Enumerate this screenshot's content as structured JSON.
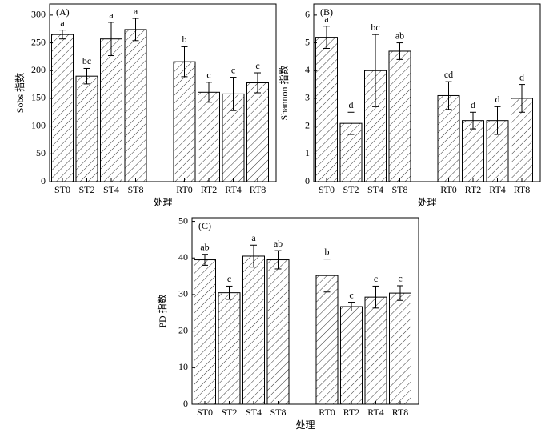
{
  "chart_data": [
    {
      "type": "bar",
      "panel_label": "(A)",
      "ylabel": "Sobs 指数",
      "xlabel": "处理",
      "categories": [
        "ST0",
        "ST2",
        "ST4",
        "ST8",
        "RT0",
        "RT2",
        "RT4",
        "RT8"
      ],
      "values": [
        265,
        190,
        257,
        274,
        216,
        161,
        158,
        178
      ],
      "errors": [
        8,
        14,
        30,
        20,
        27,
        18,
        30,
        18
      ],
      "letters": [
        "a",
        "bc",
        "a",
        "a",
        "b",
        "c",
        "c",
        "c"
      ],
      "color": "#000000",
      "ylim": [
        0,
        320
      ],
      "yticks": [
        0,
        50,
        100,
        150,
        200,
        250,
        300
      ]
    },
    {
      "type": "bar",
      "panel_label": "(B)",
      "ylabel": "Shannon 指数",
      "xlabel": "处理",
      "categories": [
        "ST0",
        "ST2",
        "ST4",
        "ST8",
        "RT0",
        "RT2",
        "RT4",
        "RT8"
      ],
      "values": [
        5.2,
        2.1,
        4.0,
        4.7,
        3.1,
        2.2,
        2.2,
        3.0
      ],
      "errors": [
        0.4,
        0.4,
        1.3,
        0.3,
        0.5,
        0.3,
        0.5,
        0.5
      ],
      "letters": [
        "a",
        "d",
        "bc",
        "ab",
        "cd",
        "d",
        "d",
        "d"
      ],
      "color": "#000000",
      "ylim": [
        0,
        6.4
      ],
      "yticks": [
        0,
        1,
        2,
        3,
        4,
        5,
        6
      ]
    },
    {
      "type": "bar",
      "panel_label": "(C)",
      "ylabel": "PD 指数",
      "xlabel": "处理",
      "categories": [
        "ST0",
        "ST2",
        "ST4",
        "ST8",
        "RT0",
        "RT2",
        "RT4",
        "RT8"
      ],
      "values": [
        39.5,
        30.5,
        40.5,
        39.5,
        35.2,
        26.7,
        29.3,
        30.4
      ],
      "errors": [
        1.5,
        1.8,
        3,
        2.5,
        4.5,
        1.2,
        3,
        2
      ],
      "letters": [
        "ab",
        "c",
        "a",
        "ab",
        "b",
        "c",
        "c",
        "c"
      ],
      "color": "#000000",
      "ylim": [
        0,
        51
      ],
      "yticks": [
        0,
        10,
        20,
        30,
        40,
        50
      ]
    }
  ]
}
